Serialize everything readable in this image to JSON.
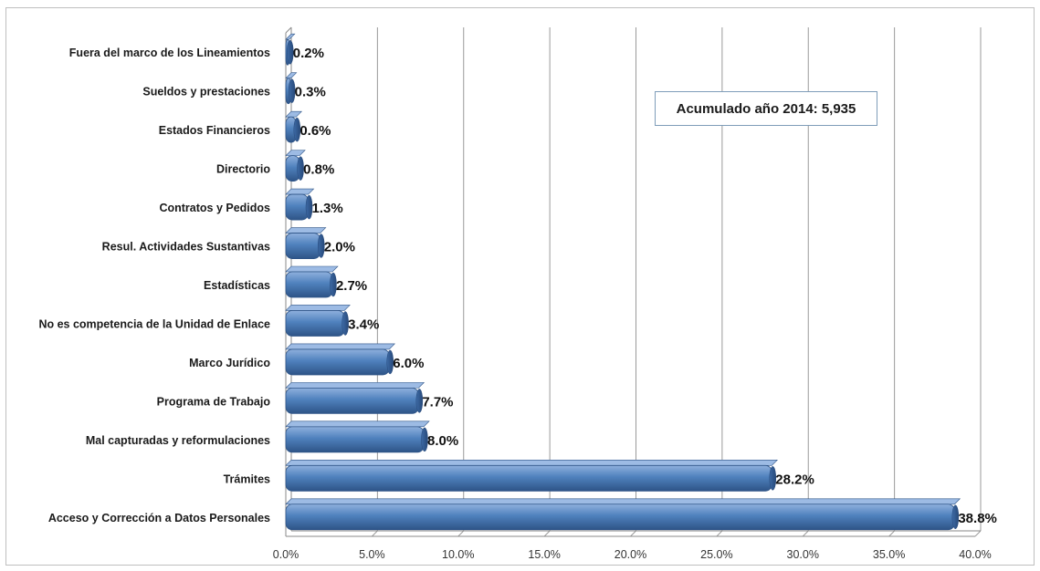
{
  "chart_data": {
    "type": "bar",
    "orientation": "horizontal",
    "categories": [
      "Acceso y Corrección a Datos Personales",
      "Trámites",
      "Mal capturadas y reformulaciones",
      "Programa de Trabajo",
      "Marco Jurídico",
      "No es competencia de la Unidad de Enlace",
      "Estadísticas",
      "Resul. Actividades Sustantivas",
      "Contratos y Pedidos",
      "Directorio",
      "Estados Financieros",
      "Sueldos y prestaciones",
      "Fuera del marco de los Lineamientos"
    ],
    "values": [
      38.8,
      28.2,
      8.0,
      7.7,
      6.0,
      3.4,
      2.7,
      2.0,
      1.3,
      0.8,
      0.6,
      0.3,
      0.2
    ],
    "data_labels": [
      "38.8%",
      "28.2%",
      "8.0%",
      "7.7%",
      "6.0%",
      "3.4%",
      "2.7%",
      "2.0%",
      "1.3%",
      "0.8%",
      "0.6%",
      "0.3%",
      "0.2%"
    ],
    "x_ticks": [
      "0.0%",
      "5.0%",
      "10.0%",
      "15.0%",
      "20.0%",
      "25.0%",
      "30.0%",
      "35.0%",
      "40.0%"
    ],
    "xlim": [
      0,
      40
    ],
    "grid": true,
    "legend": "none",
    "bar_color": "#4f81bd",
    "annotation": "Acumulado año 2014: 5,935"
  }
}
